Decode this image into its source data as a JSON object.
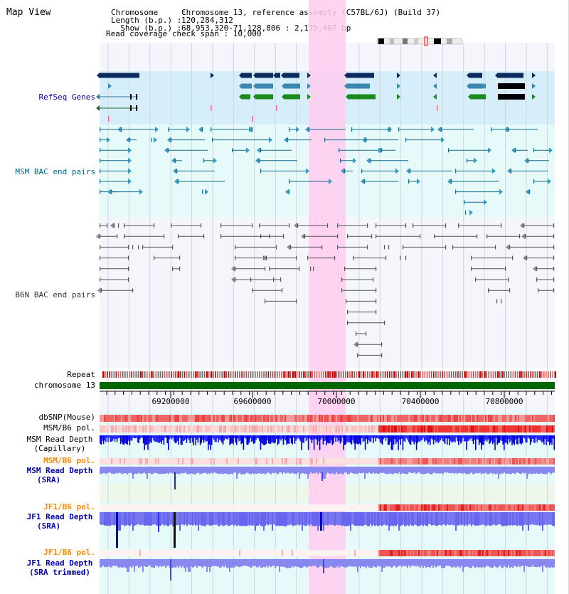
{
  "header": {
    "title": "Map View",
    "chromosome_key": "Chromosome     :",
    "chromosome_value": "Chromosome 13, reference assembly (C57BL/6J) (Build 37)",
    "length_key": "Length (b.p.) :",
    "length_value": "120,284,312",
    "show_key": "  Show (b.p.) :",
    "show_value": "68,953,320-71,128,806 : 2,175,487 bp",
    "coverage_span_text": "Read coverage check span : 10,000"
  },
  "tracks": {
    "refseq": {
      "label": "RefSeq Genes",
      "color": "#000099"
    },
    "msm_bac": {
      "label": "MSM BAC end pairs",
      "color": "#006688"
    },
    "b6n_bac": {
      "label": "B6N BAC end pairs",
      "color": "#333333"
    },
    "repeat": {
      "label": "Repeat"
    },
    "chromosome": {
      "label": "chromosome 13"
    },
    "dbsnp": {
      "label": "dbSNP(Mouse)"
    },
    "msm_b6_pol": {
      "label": "MSM/B6 pol."
    },
    "msm_depth_cap": {
      "label": "MSM Read Depth",
      "sublabel": "(Capillary)"
    },
    "msm_b6_pol2": {
      "label": "MSM/B6 pol.",
      "color": "#ff8800"
    },
    "msm_depth_sra": {
      "label": "MSM Read Depth",
      "sublabel": "(SRA)",
      "color": "#0000aa"
    },
    "jf1_b6_pol": {
      "label": "JF1/B6 pol.",
      "color": "#ff8800"
    },
    "jf1_depth_sra": {
      "label": "JF1 Read Depth",
      "sublabel": "(SRA)",
      "color": "#0000aa"
    },
    "jf1_b6_pol2": {
      "label": "JF1/B6 pol.",
      "color": "#ff8800"
    },
    "jf1_depth_trim": {
      "label": "JF1 Read Depth",
      "sublabel": "(SRA trimmed)",
      "color": "#0000aa"
    }
  },
  "axis": {
    "ticks": [
      "69200000",
      "69600000",
      "70000000",
      "70400000",
      "70800000"
    ]
  },
  "colors": {
    "highlight": "#ffccf0",
    "refseq_bg": "#d6eefa",
    "msm_bg": "#e6fafa",
    "plot_bg": "#e6fafa",
    "gene_navy": "#0d2a5c",
    "gene_teal": "#3a88b0",
    "gene_green": "#1a8a1a",
    "chromosome_bar": "#006600",
    "depth_blue": "#0000ee",
    "depth_light": "#8888ee"
  }
}
